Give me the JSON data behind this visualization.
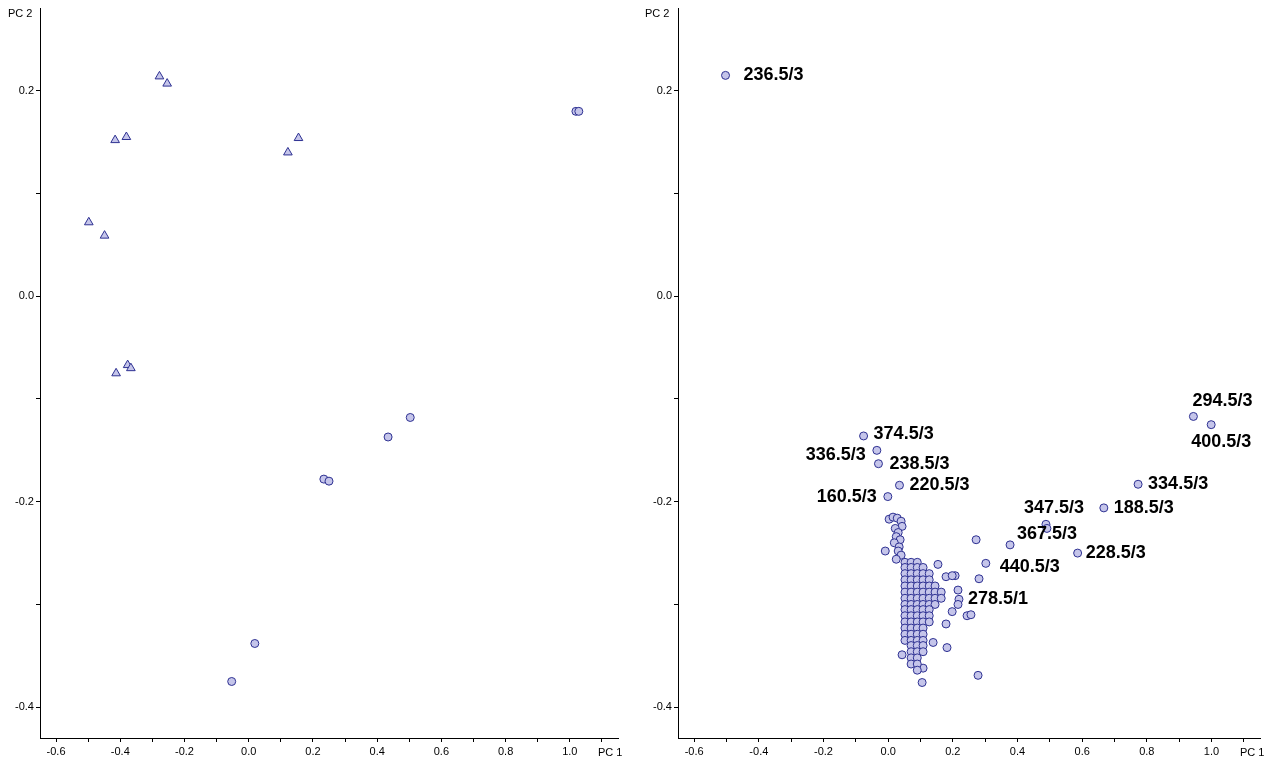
{
  "chart_data": [
    {
      "type": "scatter",
      "xlabel": "PC 1",
      "ylabel": "PC 2",
      "xlim": [
        -0.65,
        1.15
      ],
      "ylim": [
        -0.43,
        0.28
      ],
      "xticks": [
        -0.6,
        {
          "value": -0.5,
          "label": null
        },
        -0.4,
        {
          "value": -0.3,
          "label": null
        },
        -0.2,
        {
          "value": -0.1,
          "label": null
        },
        {
          "value": 0,
          "label": "0.0"
        },
        {
          "value": 0.1,
          "label": null
        },
        0.2,
        {
          "value": 0.3,
          "label": null
        },
        0.4,
        {
          "value": 0.5,
          "label": null
        },
        0.6,
        {
          "value": 0.7,
          "label": null
        },
        0.8,
        {
          "value": 0.9,
          "label": null
        },
        {
          "value": 1,
          "label": "1.0"
        },
        {
          "value": 1.1,
          "label": null
        }
      ],
      "yticks": [
        -0.4,
        {
          "value": -0.3,
          "label": null
        },
        -0.2,
        {
          "value": -0.1,
          "label": null
        },
        {
          "value": 0,
          "label": "0.0"
        },
        {
          "value": 0.1,
          "label": null
        },
        0.2
      ],
      "series": [
        {
          "color": "#c5c5ea",
          "marker": "triangle",
          "x": [
            -0.278,
            -0.254,
            -0.416,
            -0.381,
            -0.498,
            -0.449,
            0.155,
            0.122,
            -0.413,
            -0.377,
            -0.367
          ],
          "values": [
            0.214,
            0.207,
            0.152,
            0.155,
            0.072,
            0.059,
            0.154,
            0.14,
            -0.075,
            -0.067,
            -0.07
          ]
        },
        {
          "color": "#c5c5ea",
          "marker": "circle",
          "x": [
            1.019,
            1.028,
            0.503,
            0.434,
            0.234,
            0.25,
            0.019,
            -0.053
          ],
          "values": [
            0.18,
            0.18,
            -0.118,
            -0.137,
            -0.178,
            -0.18,
            -0.338,
            -0.375
          ]
        }
      ]
    },
    {
      "type": "scatter",
      "xlabel": "PC 1",
      "ylabel": "PC 2",
      "xlim": [
        -0.65,
        1.15
      ],
      "ylim": [
        -0.43,
        0.28
      ],
      "xticks": [
        -0.6,
        {
          "value": -0.5,
          "label": null
        },
        -0.4,
        {
          "value": -0.3,
          "label": null
        },
        -0.2,
        {
          "value": -0.1,
          "label": null
        },
        {
          "value": 0,
          "label": "0.0"
        },
        {
          "value": 0.1,
          "label": null
        },
        0.2,
        {
          "value": 0.3,
          "label": null
        },
        0.4,
        {
          "value": 0.5,
          "label": null
        },
        0.6,
        {
          "value": 0.7,
          "label": null
        },
        0.8,
        {
          "value": 0.9,
          "label": null
        },
        {
          "value": 1,
          "label": "1.0"
        },
        {
          "value": 1.1,
          "label": null
        }
      ],
      "yticks": [
        -0.4,
        {
          "value": -0.3,
          "label": null
        },
        -0.2,
        {
          "value": -0.1,
          "label": null
        },
        {
          "value": 0,
          "label": "0.0"
        },
        {
          "value": 0.1,
          "label": null
        },
        0.2
      ],
      "series": [
        {
          "color": "#c5c5ea",
          "marker": "circle",
          "x": [
            -0.503,
            0.944,
            0.999,
            0.773,
            0.667,
            0.488,
            0.377,
            0.586,
            0.302,
            0.219,
            -0.076,
            -0.035,
            -0.03,
            0.035,
            -0.001,
            0.491,
            0.003,
            0.015,
            0.028,
            0.04,
            0.043,
            0.022,
            0.031,
            0.025,
            0.037,
            0.019,
            0.034,
            -0.009,
            0.031,
            0.04,
            0.025,
            0.154,
            0.179,
            0.207,
            0.216,
            0.216,
            0.198,
            0.179,
            0.182,
            0.139,
            0.043,
            0.105,
            0.108,
            0.244,
            0.256,
            0.278,
            0.272,
            0.281,
            0.198,
            0.052,
            0.071,
            0.09,
            0.052,
            0.071,
            0.09,
            0.108,
            0.052,
            0.071,
            0.09,
            0.108,
            0.127,
            0.052,
            0.071,
            0.09,
            0.108,
            0.127,
            0.052,
            0.071,
            0.09,
            0.108,
            0.127,
            0.145,
            0.052,
            0.071,
            0.09,
            0.108,
            0.127,
            0.145,
            0.164,
            0.052,
            0.071,
            0.09,
            0.108,
            0.127,
            0.145,
            0.164,
            0.052,
            0.071,
            0.09,
            0.108,
            0.127,
            0.145,
            0.052,
            0.071,
            0.09,
            0.108,
            0.127,
            0.052,
            0.071,
            0.09,
            0.108,
            0.127,
            0.052,
            0.071,
            0.09,
            0.108,
            0.127,
            0.052,
            0.071,
            0.09,
            0.108,
            0.052,
            0.071,
            0.09,
            0.108,
            0.052,
            0.071,
            0.09,
            0.108,
            0.071,
            0.09,
            0.108,
            0.071,
            0.09,
            0.108,
            0.071,
            0.09,
            0.071,
            0.09,
            0.09
          ],
          "values": [
            0.215,
            -0.117,
            -0.125,
            -0.183,
            -0.206,
            -0.222,
            -0.242,
            -0.25,
            -0.26,
            -0.295,
            -0.136,
            -0.15,
            -0.163,
            -0.184,
            -0.195,
            -0.226,
            -0.217,
            -0.215,
            -0.216,
            -0.219,
            -0.224,
            -0.226,
            -0.23,
            -0.234,
            -0.237,
            -0.24,
            -0.244,
            -0.248,
            -0.248,
            -0.252,
            -0.256,
            -0.261,
            -0.273,
            -0.272,
            -0.286,
            -0.3,
            -0.307,
            -0.319,
            -0.342,
            -0.337,
            -0.349,
            -0.376,
            -0.362,
            -0.311,
            -0.31,
            -0.369,
            -0.237,
            -0.275,
            -0.272,
            -0.259,
            -0.259,
            -0.259,
            -0.264,
            -0.264,
            -0.264,
            -0.264,
            -0.27,
            -0.27,
            -0.27,
            -0.27,
            -0.27,
            -0.276,
            -0.276,
            -0.276,
            -0.276,
            -0.276,
            -0.282,
            -0.282,
            -0.282,
            -0.282,
            -0.282,
            -0.282,
            -0.288,
            -0.288,
            -0.288,
            -0.288,
            -0.288,
            -0.288,
            -0.288,
            -0.294,
            -0.294,
            -0.294,
            -0.294,
            -0.294,
            -0.294,
            -0.294,
            -0.3,
            -0.3,
            -0.3,
            -0.3,
            -0.3,
            -0.3,
            -0.305,
            -0.305,
            -0.305,
            -0.305,
            -0.305,
            -0.311,
            -0.311,
            -0.311,
            -0.311,
            -0.311,
            -0.317,
            -0.317,
            -0.317,
            -0.317,
            -0.317,
            -0.323,
            -0.323,
            -0.323,
            -0.323,
            -0.329,
            -0.329,
            -0.329,
            -0.329,
            -0.335,
            -0.335,
            -0.335,
            -0.335,
            -0.34,
            -0.34,
            -0.34,
            -0.346,
            -0.346,
            -0.346,
            -0.352,
            -0.352,
            -0.358,
            -0.358,
            -0.364
          ]
        }
      ],
      "annotations": [
        {
          "text": "236.5/3",
          "x": -0.503,
          "y": 0.215
        },
        {
          "text": "294.5/3",
          "x": 0.944,
          "y": -0.117
        },
        {
          "text": "400.5/3",
          "x": 0.999,
          "y": -0.125
        },
        {
          "text": "334.5/3",
          "x": 0.773,
          "y": -0.183
        },
        {
          "text": "188.5/3",
          "x": 0.667,
          "y": -0.206
        },
        {
          "text": "347.5/3",
          "x": 0.488,
          "y": -0.222
        },
        {
          "text": "367.5/3",
          "x": 0.377,
          "y": -0.242
        },
        {
          "text": "228.5/3",
          "x": 0.586,
          "y": -0.25
        },
        {
          "text": "440.5/3",
          "x": 0.302,
          "y": -0.26
        },
        {
          "text": "278.5/1",
          "x": 0.219,
          "y": -0.295
        },
        {
          "text": "374.5/3",
          "x": -0.076,
          "y": -0.136
        },
        {
          "text": "336.5/3",
          "x": -0.035,
          "y": -0.15
        },
        {
          "text": "238.5/3",
          "x": -0.03,
          "y": -0.163
        },
        {
          "text": "220.5/3",
          "x": 0.035,
          "y": -0.184
        },
        {
          "text": "160.5/3",
          "x": -0.001,
          "y": -0.195
        }
      ]
    }
  ]
}
